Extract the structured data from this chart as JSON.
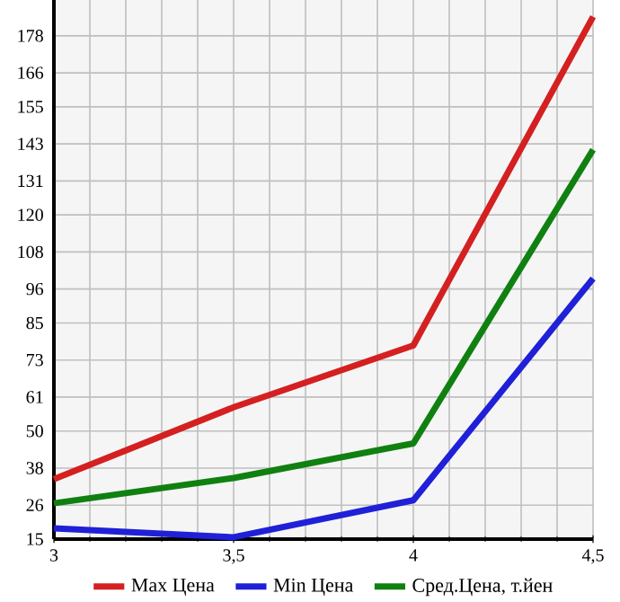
{
  "chart_data": {
    "type": "line",
    "x": [
      3,
      3.5,
      4,
      4.5
    ],
    "series": [
      {
        "name": "Max Цена",
        "color": "#d42020",
        "values": [
          34.4,
          57.7,
          77.7,
          184.2
        ]
      },
      {
        "name": "Min Цена",
        "color": "#2020d8",
        "values": [
          18.5,
          15.6,
          27.6,
          99.4
        ]
      },
      {
        "name": "Сред.Цена, т.йен",
        "color": "#108010",
        "values": [
          26.6,
          34.8,
          46.0,
          141.1
        ]
      }
    ],
    "xlim": [
      3,
      4.5
    ],
    "xticks": [
      3,
      {
        "value": 3.5,
        "label": "3,5"
      },
      4,
      {
        "value": 4.5,
        "label": "4,5"
      }
    ],
    "ylim": [
      15,
      189.6
    ],
    "yticks": [
      15,
      26,
      38,
      50,
      61,
      73,
      85,
      96,
      108,
      120,
      131,
      143,
      155,
      166,
      178
    ],
    "grid": true,
    "legend": "bottom",
    "marker": "none",
    "line_style": "solid"
  }
}
